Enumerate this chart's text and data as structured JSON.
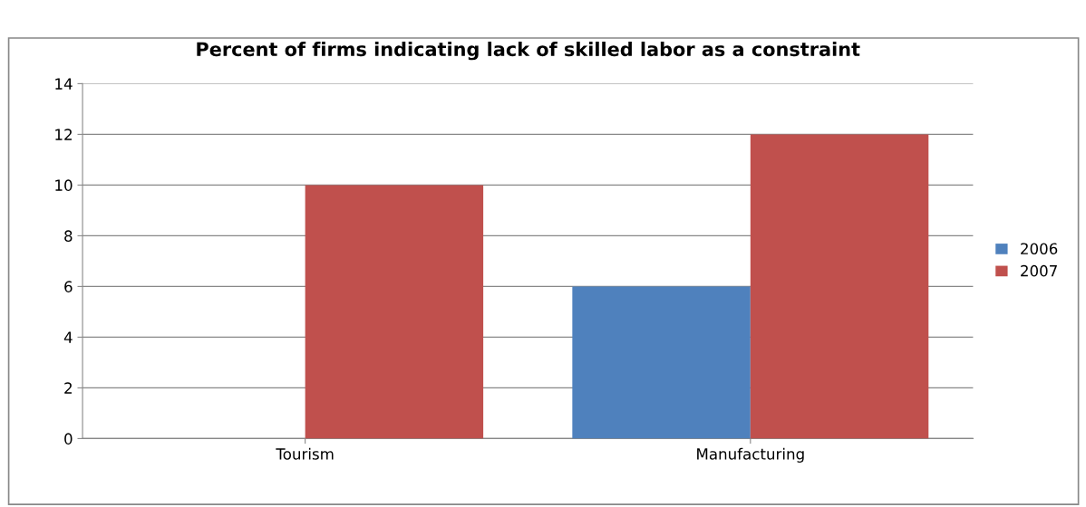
{
  "chart_data": {
    "type": "bar",
    "title": "Percent of firms indicating lack of skilled labor as a constraint",
    "categories": [
      "Tourism",
      "Manufacturing"
    ],
    "series": [
      {
        "name": "2006",
        "color": "#4f81bd",
        "values": [
          0,
          6
        ]
      },
      {
        "name": "2007",
        "color": "#c0504d",
        "values": [
          10,
          12
        ]
      }
    ],
    "ylim": [
      0,
      14
    ],
    "yticks": [
      0,
      2,
      4,
      6,
      8,
      10,
      12,
      14
    ],
    "grid": "y",
    "legend": "right"
  }
}
